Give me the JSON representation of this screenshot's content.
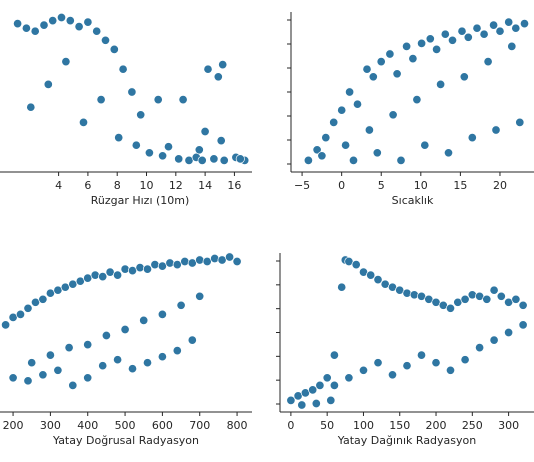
{
  "colors": {
    "marker": "#2f76a2",
    "marker_edge": "#ffffff",
    "axis": "#262626",
    "background": "#ffffff"
  },
  "chart_data": [
    {
      "type": "scatter",
      "xlabel": "Rüzgar Hızı (10m)",
      "ylabel": "",
      "xlim": [
        0,
        17.2
      ],
      "ylim": [
        0,
        1
      ],
      "xticks": [
        4,
        6,
        8,
        10,
        12,
        14,
        16
      ],
      "grid": false,
      "legend": "none",
      "x": [
        1.2,
        1.8,
        2.4,
        3.0,
        3.6,
        4.2,
        4.8,
        5.4,
        6.0,
        6.6,
        7.2,
        7.8,
        8.4,
        9.0,
        9.6,
        2.1,
        3.3,
        4.5,
        5.7,
        6.9,
        8.1,
        9.3,
        10.2,
        10.8,
        11.1,
        11.5,
        12.2,
        12.9,
        13.4,
        13.8,
        14.6,
        15.3,
        16.1,
        16.7,
        12.5,
        14.2,
        14.9,
        15.2,
        14.0,
        15.1,
        13.6,
        16.4
      ],
      "y": [
        0.95,
        0.92,
        0.9,
        0.94,
        0.97,
        0.99,
        0.97,
        0.93,
        0.96,
        0.9,
        0.84,
        0.78,
        0.65,
        0.5,
        0.35,
        0.4,
        0.55,
        0.7,
        0.3,
        0.45,
        0.2,
        0.15,
        0.1,
        0.45,
        0.08,
        0.14,
        0.06,
        0.05,
        0.07,
        0.05,
        0.06,
        0.05,
        0.07,
        0.05,
        0.45,
        0.65,
        0.6,
        0.68,
        0.24,
        0.18,
        0.12,
        0.06
      ]
    },
    {
      "type": "scatter",
      "xlabel": "Sıcaklık",
      "ylabel": "",
      "xlim": [
        -6.4,
        24.3
      ],
      "ylim": [
        0,
        1
      ],
      "xticks": [
        -5,
        0,
        5,
        10,
        15,
        20
      ],
      "grid": false,
      "legend": "none",
      "x": [
        -4.2,
        -3.1,
        -2.0,
        -1.0,
        0.0,
        1.0,
        2.0,
        3.2,
        4.0,
        5.0,
        6.1,
        7.0,
        8.2,
        9.0,
        10.1,
        11.2,
        12.0,
        13.1,
        14.0,
        15.2,
        16.0,
        17.1,
        18.0,
        19.2,
        20.0,
        21.1,
        22.0,
        23.1,
        -2.5,
        0.5,
        3.5,
        6.5,
        9.5,
        12.5,
        15.5,
        18.5,
        21.5,
        1.5,
        4.5,
        7.5,
        10.5,
        13.5,
        16.5,
        19.5,
        22.5
      ],
      "y": [
        0.05,
        0.12,
        0.2,
        0.3,
        0.38,
        0.5,
        0.42,
        0.65,
        0.6,
        0.7,
        0.75,
        0.62,
        0.8,
        0.72,
        0.82,
        0.85,
        0.78,
        0.88,
        0.84,
        0.9,
        0.86,
        0.92,
        0.88,
        0.94,
        0.9,
        0.96,
        0.92,
        0.95,
        0.08,
        0.15,
        0.25,
        0.35,
        0.45,
        0.55,
        0.6,
        0.7,
        0.8,
        0.05,
        0.1,
        0.05,
        0.15,
        0.1,
        0.2,
        0.25,
        0.3
      ]
    },
    {
      "type": "scatter",
      "xlabel": "Yatay Doğrusal Radyasyon",
      "ylabel": "",
      "xlim": [
        165,
        840
      ],
      "ylim": [
        0,
        1
      ],
      "xticks": [
        200,
        300,
        400,
        500,
        600,
        700,
        800
      ],
      "grid": false,
      "legend": "none",
      "x": [
        180,
        200,
        220,
        240,
        260,
        280,
        300,
        320,
        340,
        360,
        380,
        400,
        420,
        440,
        460,
        480,
        500,
        520,
        540,
        560,
        580,
        600,
        620,
        640,
        660,
        680,
        700,
        720,
        740,
        760,
        780,
        800,
        250,
        300,
        350,
        400,
        450,
        500,
        550,
        600,
        650,
        700,
        200,
        240,
        280,
        320,
        360,
        400,
        440,
        480,
        520,
        560,
        600,
        640,
        680
      ],
      "y": [
        0.55,
        0.6,
        0.62,
        0.66,
        0.7,
        0.72,
        0.76,
        0.78,
        0.8,
        0.82,
        0.84,
        0.86,
        0.88,
        0.87,
        0.9,
        0.88,
        0.92,
        0.91,
        0.93,
        0.92,
        0.95,
        0.94,
        0.96,
        0.95,
        0.97,
        0.96,
        0.98,
        0.97,
        0.99,
        0.98,
        1.0,
        0.97,
        0.3,
        0.35,
        0.4,
        0.42,
        0.48,
        0.52,
        0.58,
        0.62,
        0.68,
        0.74,
        0.2,
        0.18,
        0.22,
        0.25,
        0.15,
        0.2,
        0.28,
        0.32,
        0.26,
        0.3,
        0.34,
        0.38,
        0.45
      ]
    },
    {
      "type": "scatter",
      "xlabel": "Yatay Dağınık Radyasyon",
      "ylabel": "",
      "xlim": [
        -15,
        335
      ],
      "ylim": [
        0,
        1
      ],
      "xticks": [
        0,
        50,
        100,
        150,
        200,
        250,
        300
      ],
      "grid": false,
      "legend": "none",
      "x": [
        0,
        10,
        20,
        30,
        40,
        50,
        60,
        70,
        75,
        80,
        90,
        100,
        110,
        120,
        130,
        140,
        150,
        160,
        170,
        180,
        190,
        200,
        210,
        220,
        230,
        240,
        250,
        260,
        270,
        280,
        290,
        300,
        310,
        320,
        60,
        80,
        100,
        120,
        140,
        160,
        180,
        200,
        220,
        240,
        260,
        280,
        300,
        320,
        15,
        35,
        55
      ],
      "y": [
        0.05,
        0.08,
        0.1,
        0.12,
        0.15,
        0.2,
        0.35,
        0.8,
        0.98,
        0.97,
        0.95,
        0.9,
        0.88,
        0.85,
        0.82,
        0.8,
        0.78,
        0.76,
        0.75,
        0.74,
        0.72,
        0.7,
        0.68,
        0.66,
        0.7,
        0.72,
        0.75,
        0.74,
        0.72,
        0.78,
        0.74,
        0.7,
        0.72,
        0.68,
        0.15,
        0.2,
        0.25,
        0.3,
        0.22,
        0.28,
        0.35,
        0.3,
        0.25,
        0.32,
        0.4,
        0.45,
        0.5,
        0.55,
        0.02,
        0.03,
        0.05
      ]
    }
  ]
}
